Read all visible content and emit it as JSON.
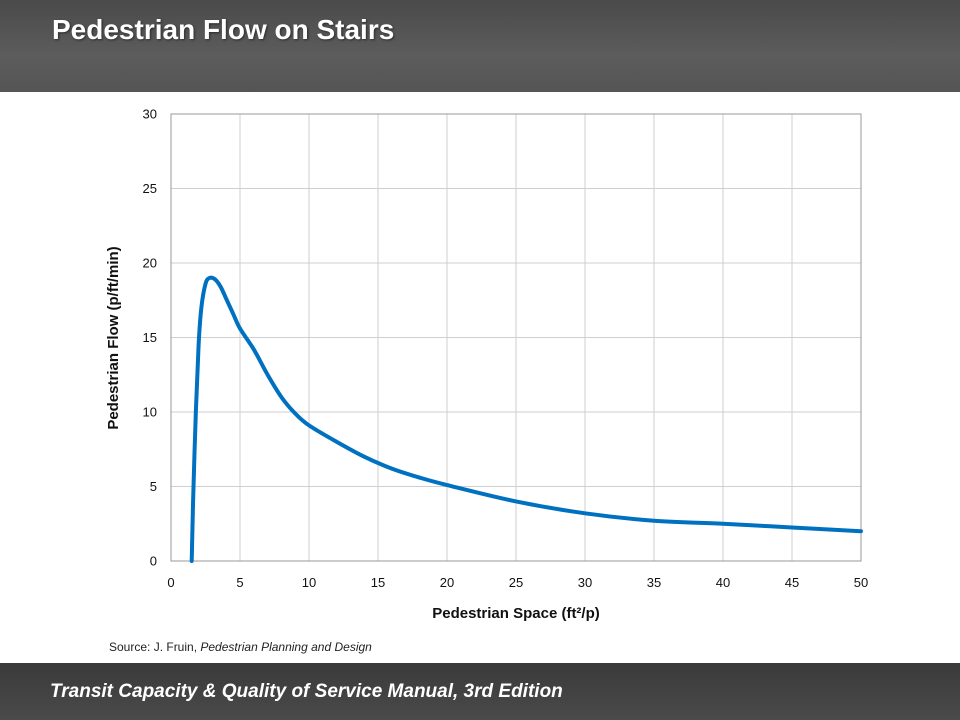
{
  "slide": {
    "title": "Pedestrian Flow on Stairs",
    "footer": "Transit Capacity & Quality of Service Manual, 3rd Edition",
    "source_prefix": "Source: J. Fruin, ",
    "source_title": "Pedestrian Planning and Design"
  },
  "colors": {
    "series": "#0070c0",
    "grid": "#cfcfcf",
    "header_bg": "#555555",
    "footer_bg": "#444444"
  },
  "chart_data": {
    "type": "line",
    "title": "",
    "xlabel": "Pedestrian Space (ft²/p)",
    "ylabel": "Pedestrian Flow (p/ft/min)",
    "xlim": [
      0,
      50
    ],
    "ylim": [
      0,
      30
    ],
    "xticks": [
      0,
      5,
      10,
      15,
      20,
      25,
      30,
      35,
      40,
      45,
      50
    ],
    "yticks": [
      0,
      5,
      10,
      15,
      20,
      25,
      30
    ],
    "grid": true,
    "legend": "none",
    "series": [
      {
        "x": [
          1.5,
          1.6,
          1.8,
          2.0,
          2.2,
          2.5,
          2.8,
          3.2,
          3.6,
          4.0,
          4.5,
          5.0,
          6.0,
          7.0,
          8.0,
          9.0,
          10.0,
          12.0,
          14.0,
          16.0,
          18.0,
          20.0,
          25.0,
          30.0,
          35.0,
          40.0,
          45.0,
          50.0
        ],
        "y": [
          0.0,
          4.0,
          10.0,
          14.5,
          17.0,
          18.6,
          19.0,
          18.9,
          18.4,
          17.6,
          16.6,
          15.6,
          14.2,
          12.5,
          11.0,
          9.9,
          9.1,
          8.0,
          7.0,
          6.2,
          5.6,
          5.1,
          4.0,
          3.2,
          2.7,
          2.5,
          2.25,
          2.0
        ]
      }
    ]
  }
}
